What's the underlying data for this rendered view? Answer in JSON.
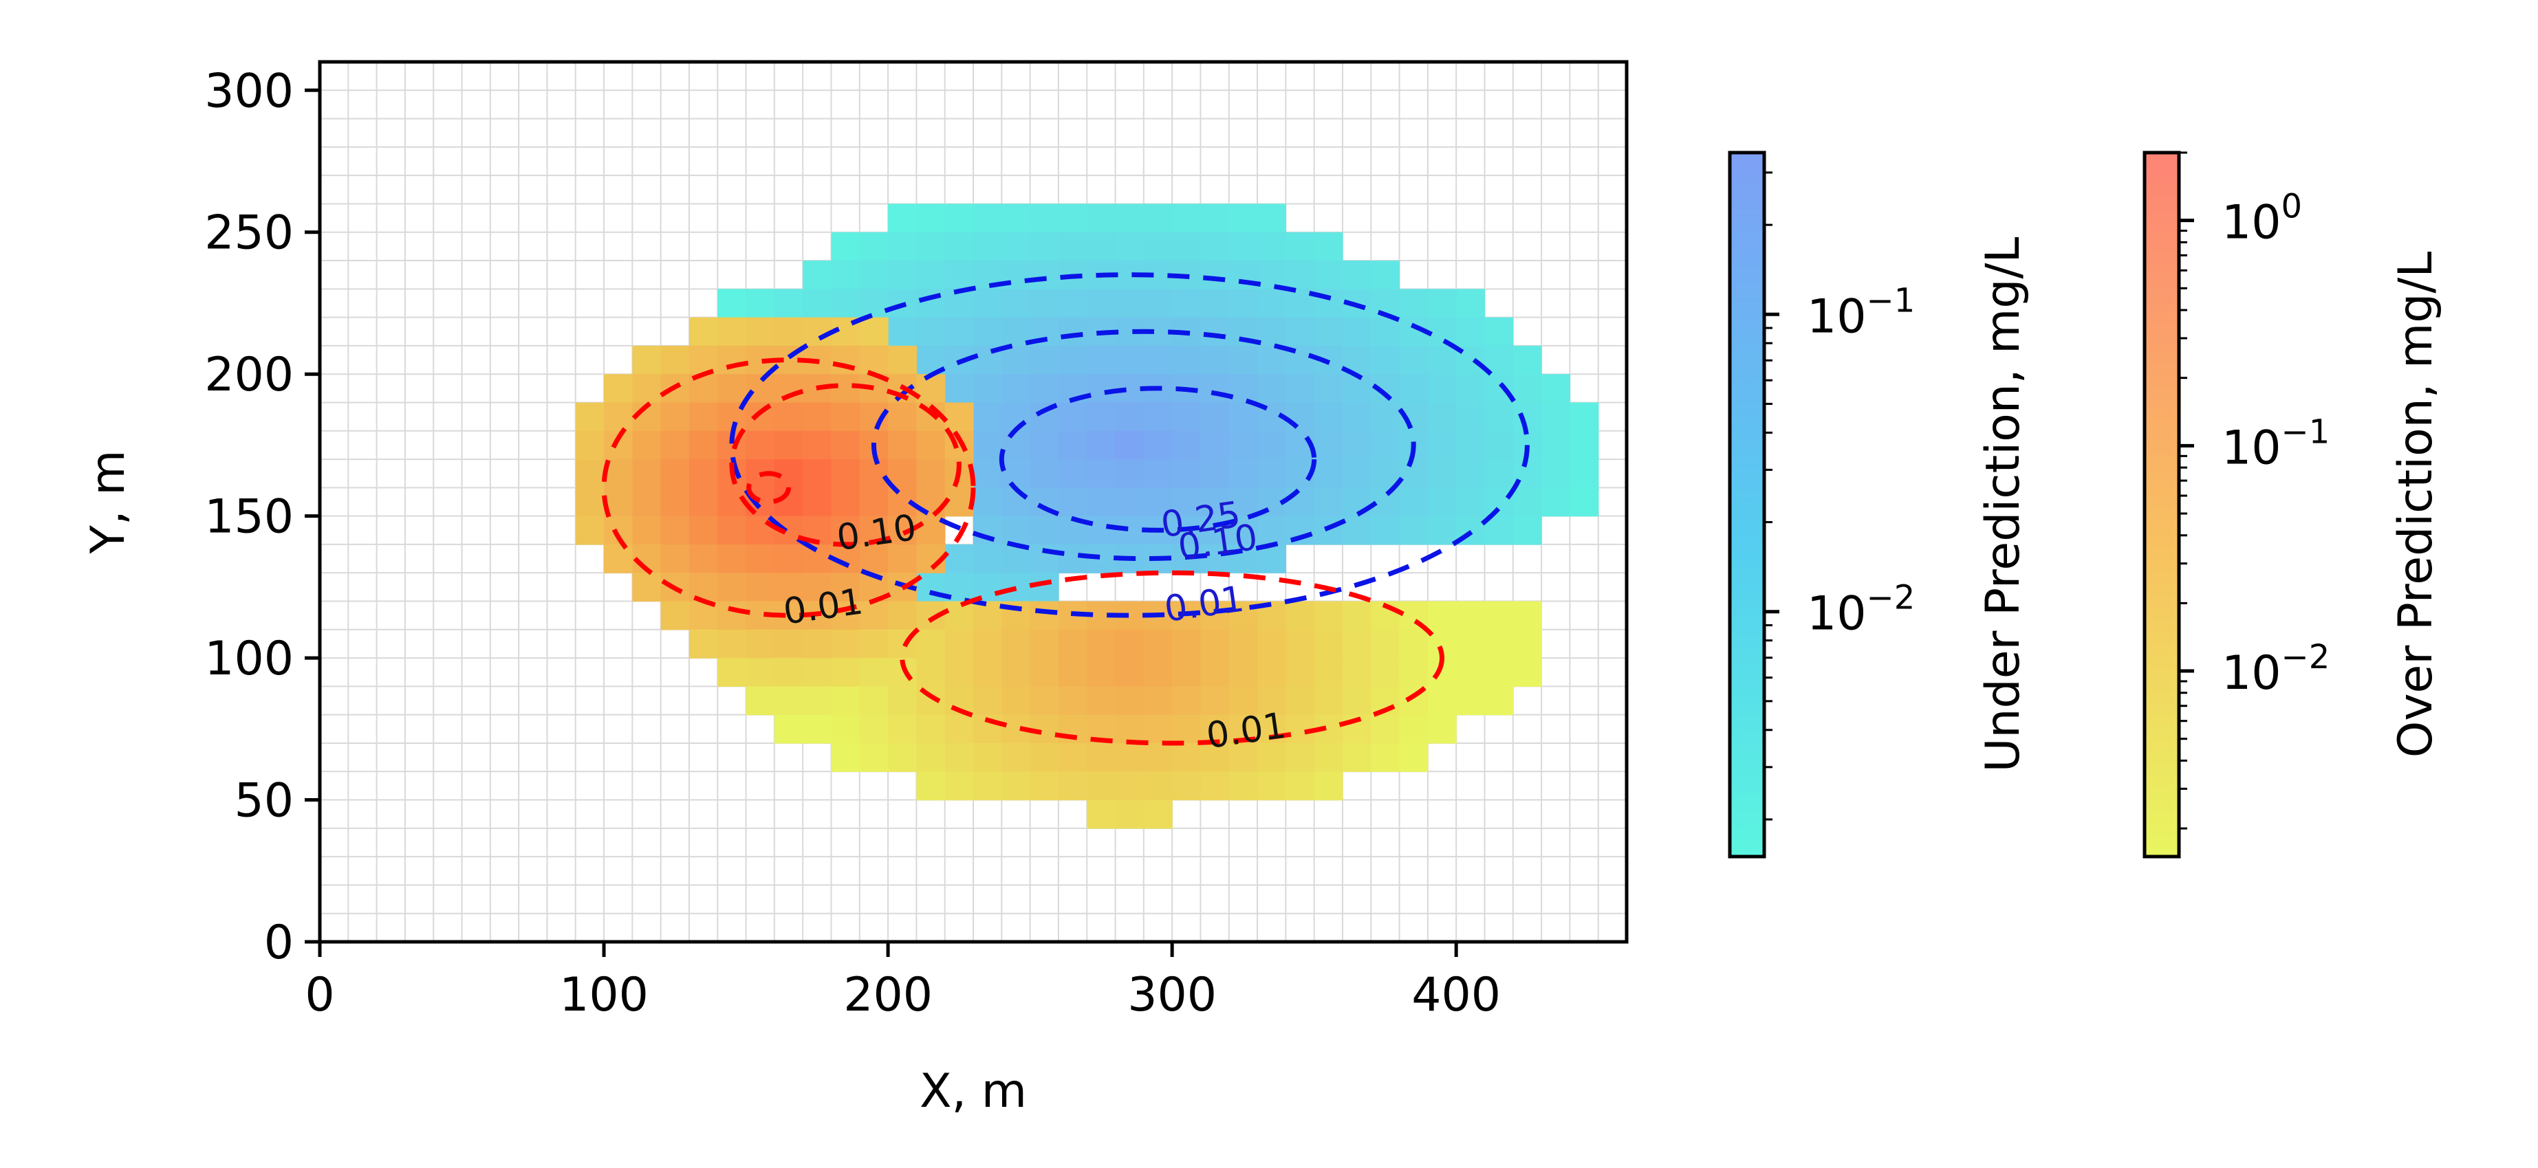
{
  "chart_data": {
    "type": "heatmap",
    "xlabel": "X, m",
    "ylabel": "Y, m",
    "xlim": [
      0,
      460
    ],
    "ylim": [
      0,
      310
    ],
    "x_ticks": [
      "0",
      "100",
      "200",
      "300",
      "400"
    ],
    "y_ticks": [
      "0",
      "50",
      "100",
      "150",
      "200",
      "250",
      "300"
    ],
    "grid": true,
    "cell_size_m": 10,
    "under_prediction": {
      "colormap": "cool (cyan to blue)",
      "color_low": "#5cf5e0",
      "color_high": "#7ea0f5",
      "region_rows": [
        {
          "y": 250,
          "x_from": 200,
          "x_to": 340
        },
        {
          "y": 240,
          "x_from": 180,
          "x_to": 360
        },
        {
          "y": 230,
          "x_from": 170,
          "x_to": 380
        },
        {
          "y": 220,
          "x_from": 140,
          "x_to": 410
        },
        {
          "y": 210,
          "x_from": 140,
          "x_to": 420
        },
        {
          "y": 200,
          "x_from": 190,
          "x_to": 430
        },
        {
          "y": 190,
          "x_from": 200,
          "x_to": 440
        },
        {
          "y": 180,
          "x_from": 210,
          "x_to": 450
        },
        {
          "y": 170,
          "x_from": 230,
          "x_to": 450
        },
        {
          "y": 160,
          "x_from": 230,
          "x_to": 450
        },
        {
          "y": 150,
          "x_from": 230,
          "x_to": 450
        },
        {
          "y": 140,
          "x_from": 230,
          "x_to": 430
        },
        {
          "y": 130,
          "x_from": 220,
          "x_to": 340
        },
        {
          "y": 120,
          "x_from": 200,
          "x_to": 260
        }
      ],
      "peak": {
        "x": 285,
        "y": 175,
        "value": 0.3
      },
      "contours": [
        {
          "level": "0.01",
          "cx": 285,
          "cy": 175,
          "rx": 140,
          "ry": 60
        },
        {
          "level": "0.10",
          "cx": 290,
          "cy": 175,
          "rx": 95,
          "ry": 40
        },
        {
          "level": "0.25",
          "cx": 295,
          "cy": 170,
          "rx": 55,
          "ry": 25
        }
      ],
      "colorbar": {
        "label": "Under Prediction, mg/L",
        "scale": "log",
        "range": [
          0.0015,
          0.35
        ],
        "ticks": [
          {
            "value": 0.1,
            "base": "10",
            "exp": "−1"
          },
          {
            "value": 0.01,
            "base": "10",
            "exp": "−2"
          }
        ]
      }
    },
    "over_prediction": {
      "colormap": "autumn (yellow to red)",
      "color_low": "#e8f560",
      "color_high": "#ff5f3f",
      "region_rows": [
        {
          "y": 210,
          "x_from": 130,
          "x_to": 200
        },
        {
          "y": 200,
          "x_from": 110,
          "x_to": 210
        },
        {
          "y": 190,
          "x_from": 100,
          "x_to": 220
        },
        {
          "y": 180,
          "x_from": 90,
          "x_to": 230
        },
        {
          "y": 170,
          "x_from": 90,
          "x_to": 230
        },
        {
          "y": 160,
          "x_from": 90,
          "x_to": 230
        },
        {
          "y": 150,
          "x_from": 90,
          "x_to": 230
        },
        {
          "y": 140,
          "x_from": 90,
          "x_to": 220
        },
        {
          "y": 130,
          "x_from": 100,
          "x_to": 220
        },
        {
          "y": 120,
          "x_from": 110,
          "x_to": 210
        },
        {
          "y": 110,
          "x_from": 120,
          "x_to": 430
        },
        {
          "y": 100,
          "x_from": 130,
          "x_to": 430
        },
        {
          "y": 90,
          "x_from": 140,
          "x_to": 430
        },
        {
          "y": 80,
          "x_from": 150,
          "x_to": 420
        },
        {
          "y": 70,
          "x_from": 160,
          "x_to": 400
        },
        {
          "y": 60,
          "x_from": 180,
          "x_to": 390
        },
        {
          "y": 50,
          "x_from": 210,
          "x_to": 360
        },
        {
          "y": 40,
          "x_from": 270,
          "x_to": 300
        }
      ],
      "peaks": [
        {
          "x": 165,
          "y": 160,
          "value": 1.5
        },
        {
          "x": 285,
          "y": 100,
          "value": 0.08
        }
      ],
      "contours": [
        {
          "level": "0.01",
          "cx": 165,
          "cy": 160,
          "rx": 65,
          "ry": 45
        },
        {
          "level": "0.10",
          "cx": 185,
          "cy": 168,
          "rx": 40,
          "ry": 28
        },
        {
          "level": "",
          "cx": 158,
          "cy": 160,
          "rx": 7,
          "ry": 5
        },
        {
          "level": "0.01",
          "cx": 300,
          "cy": 100,
          "rx": 95,
          "ry": 30
        }
      ],
      "colorbar": {
        "label": "Over Prediction, mg/L",
        "scale": "log",
        "range": [
          0.0015,
          2.0
        ],
        "ticks": [
          {
            "value": 1,
            "base": "10",
            "exp": "0"
          },
          {
            "value": 0.1,
            "base": "10",
            "exp": "−1"
          },
          {
            "value": 0.01,
            "base": "10",
            "exp": "−2"
          }
        ]
      }
    }
  }
}
